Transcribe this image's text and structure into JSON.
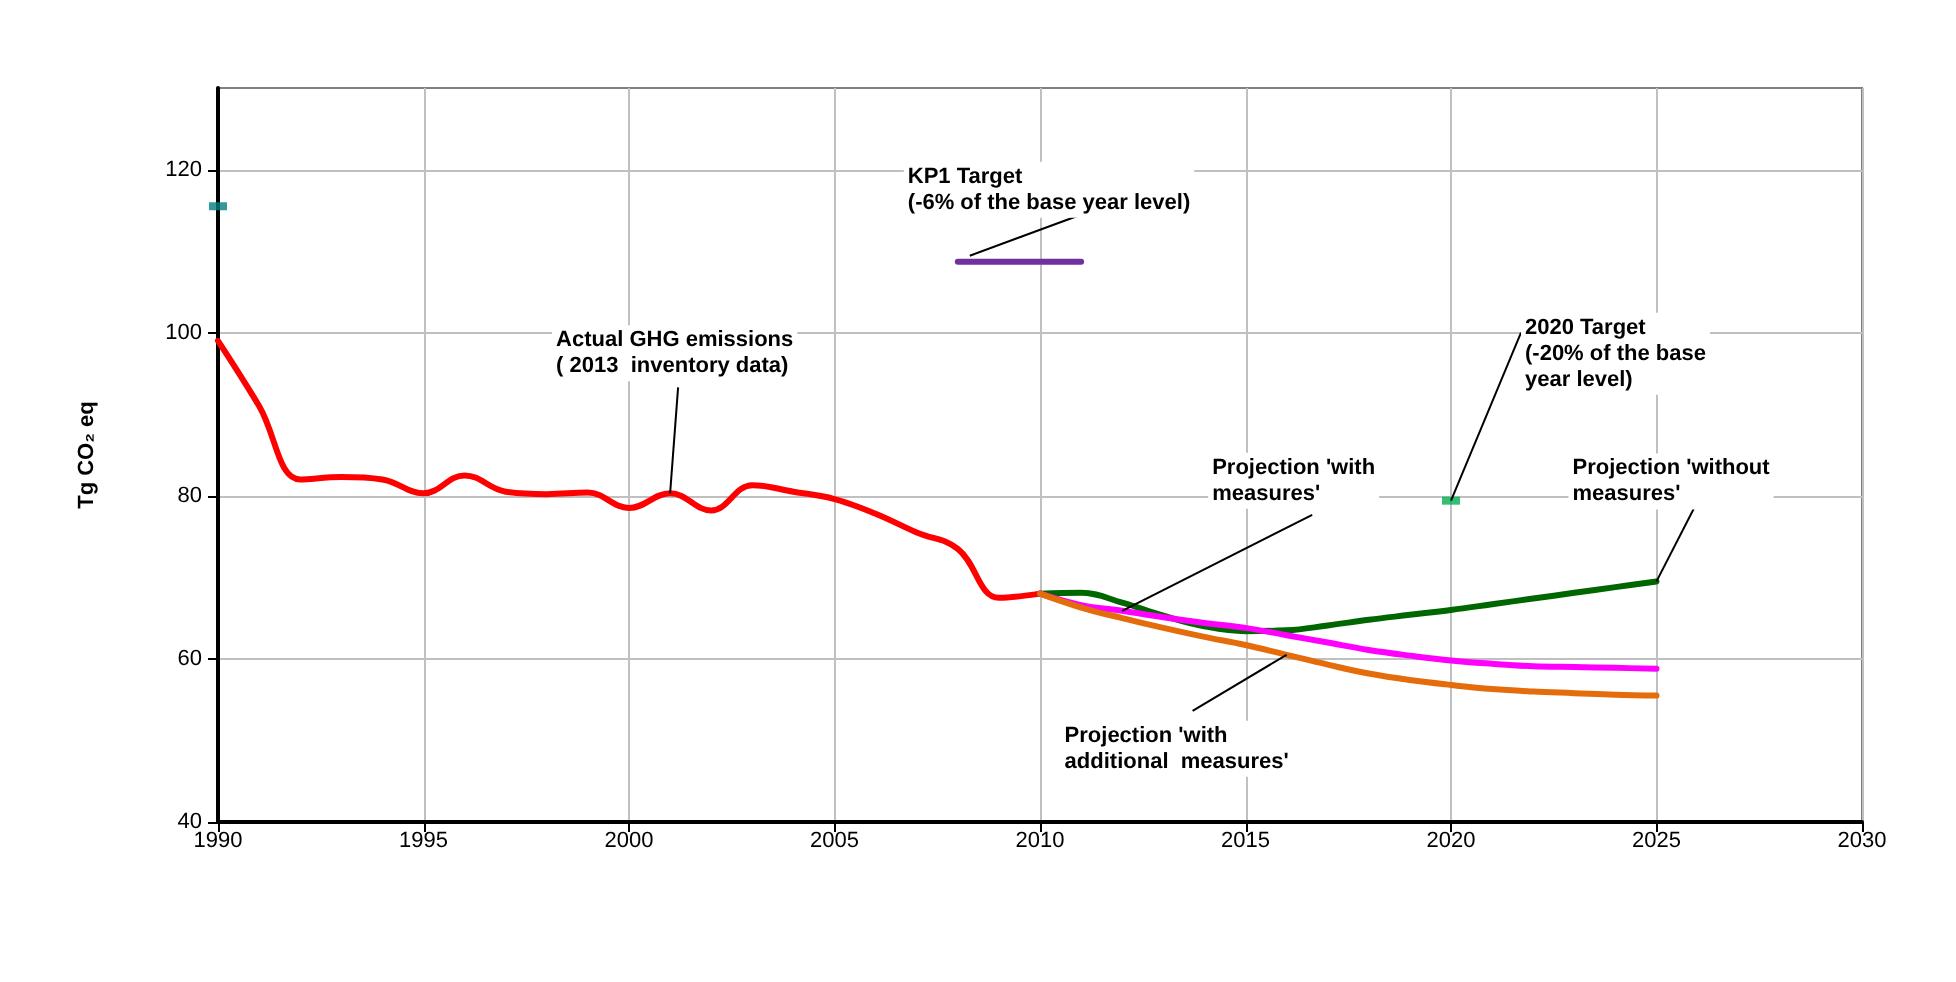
{
  "chart_data": {
    "type": "line",
    "ylabel": "Tg CO₂ eq",
    "xlim": [
      1990,
      2030
    ],
    "xticks": [
      1990,
      1995,
      2000,
      2005,
      2010,
      2015,
      2020,
      2025,
      2030
    ],
    "ylim": [
      40,
      130
    ],
    "yticks": [
      40,
      60,
      80,
      100,
      120
    ],
    "grid": true,
    "marker": "none",
    "line_style": "solid",
    "series": [
      {
        "color": "#ff0000",
        "x": [
          1990,
          1991,
          1992,
          1993,
          1994,
          1995,
          1996,
          1997,
          1998,
          1999,
          2000,
          2001,
          2002,
          2003,
          2004,
          2005,
          2006,
          2007,
          2008,
          2009,
          2010
        ],
        "values": [
          99,
          91,
          82,
          82.3,
          82,
          80.3,
          82.5,
          80.5,
          80.2,
          80.4,
          78.5,
          80.3,
          78.2,
          81.3,
          80.5,
          79.6,
          77.8,
          75.5,
          73.5,
          67.5,
          68
        ]
      },
      {
        "color": "#006600",
        "x": [
          2010,
          2011,
          2012,
          2013,
          2014,
          2015,
          2016,
          2017,
          2018,
          2019,
          2020,
          2021,
          2022,
          2023,
          2024,
          2025
        ],
        "values": [
          68,
          68.1,
          66.9,
          65.3,
          64,
          63.4,
          63.5,
          64.1,
          64.8,
          65.4,
          66,
          66.7,
          67.4,
          68.1,
          68.8,
          69.5
        ]
      },
      {
        "color": "#ff00ff",
        "x": [
          2010,
          2011,
          2012,
          2013,
          2014,
          2015,
          2016,
          2017,
          2018,
          2019,
          2020,
          2021,
          2022,
          2023,
          2024,
          2025
        ],
        "values": [
          68,
          66.6,
          65.9,
          65.1,
          64.4,
          63.8,
          62.9,
          62,
          61.1,
          60.4,
          59.8,
          59.4,
          59.1,
          59,
          58.9,
          58.8
        ]
      },
      {
        "color": "#e46c0a",
        "x": [
          2010,
          2011,
          2012,
          2013,
          2014,
          2015,
          2016,
          2017,
          2018,
          2019,
          2020,
          2021,
          2022,
          2023,
          2024,
          2025
        ],
        "values": [
          68,
          66.3,
          65,
          63.8,
          62.7,
          61.7,
          60.5,
          59.3,
          58.2,
          57.4,
          56.8,
          56.3,
          56,
          55.8,
          55.6,
          55.5
        ]
      },
      {
        "color": "#7030a0",
        "x": [
          2008,
          2011
        ],
        "values": [
          108.7,
          108.7
        ]
      },
      {
        "type": "scatter",
        "marker": "square",
        "color": "#008080",
        "x": [
          1990
        ],
        "values": [
          115.5
        ]
      },
      {
        "type": "scatter",
        "marker": "square",
        "color": "#00b050",
        "x": [
          2020
        ],
        "values": [
          79.4
        ]
      }
    ],
    "annotations": [
      {
        "text": "Actual GHG emissions\n( 2013  inventory data)",
        "x": 2001,
        "y": 80.3
      },
      {
        "text": "KP1 Target\n(-6% of the base year level)",
        "x": 2008,
        "y": 108.7
      },
      {
        "text": "Projection 'with\nmeasures'",
        "x": 2012,
        "y": 65.9
      },
      {
        "text": "2020 Target\n(-20% of the base\nyear level)",
        "x": 2020,
        "y": 79.4
      },
      {
        "text": "Projection 'without\nmeasures'",
        "x": 2025,
        "y": 69.5
      },
      {
        "text": "Projection 'with\nadditional  measures'",
        "x": 2016,
        "y": 60.5
      }
    ]
  }
}
